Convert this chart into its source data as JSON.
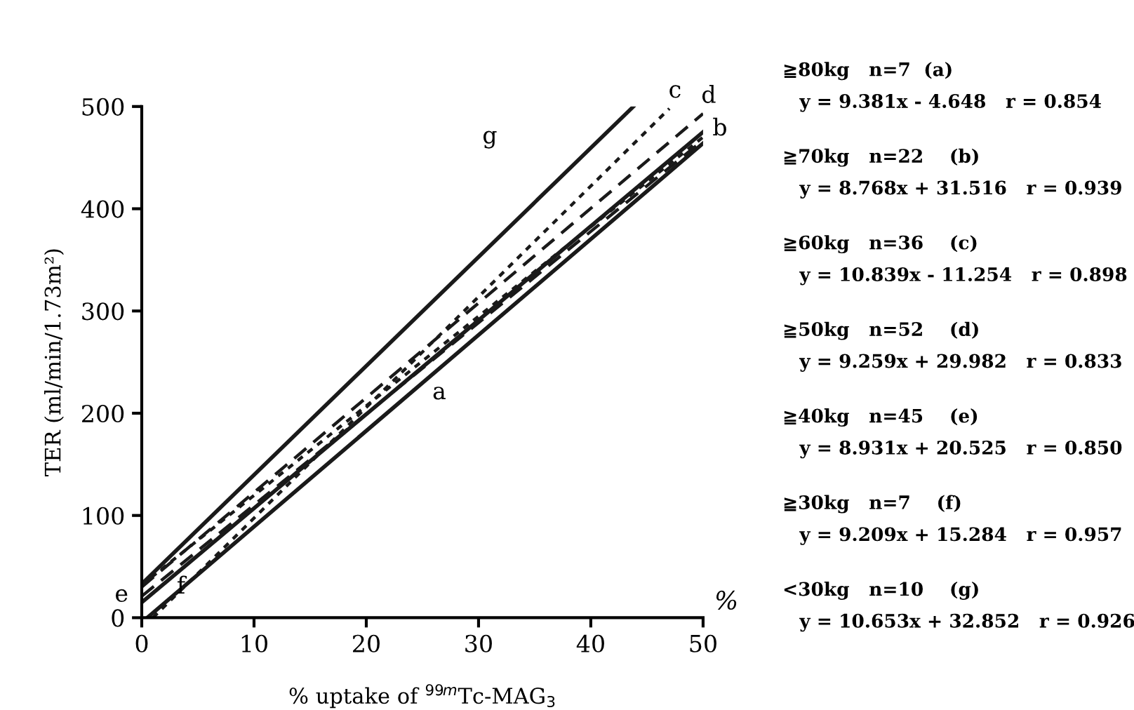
{
  "chart_data": {
    "type": "line",
    "xlabel": "% uptake of $^{99m}$Tc-MAG$_{3}$",
    "ylabel": "TER (ml/min/1.73m²)",
    "xlim": [
      0,
      50
    ],
    "ylim": [
      0,
      500
    ],
    "xticks": [
      0,
      10,
      20,
      30,
      40,
      50
    ],
    "yticks": [
      0,
      100,
      200,
      300,
      400,
      500
    ],
    "grid": false,
    "legend": false,
    "marker": "none",
    "series": [
      {
        "name": "a",
        "color": "#1a1a1a",
        "x": [
          0.5,
          50
        ],
        "values": [
          0,
          464
        ],
        "line_style": "solid"
      },
      {
        "name": "b",
        "color": "#1a1a1a",
        "x": [
          0,
          50
        ],
        "values": [
          32,
          470
        ],
        "line_style": "dotted"
      },
      {
        "name": "c",
        "color": "#1a1a1a",
        "x": [
          1,
          47
        ],
        "values": [
          0,
          498
        ],
        "line_style": "dotted"
      },
      {
        "name": "d",
        "color": "#1a1a1a",
        "x": [
          0,
          50
        ],
        "values": [
          30,
          493
        ],
        "line_style": "dashed"
      },
      {
        "name": "e",
        "color": "#1a1a1a",
        "x": [
          0,
          50
        ],
        "values": [
          21,
          467
        ],
        "line_style": "dashed"
      },
      {
        "name": "f",
        "color": "#1a1a1a",
        "x": [
          0,
          50
        ],
        "values": [
          15,
          475
        ],
        "line_style": "solid"
      },
      {
        "name": "g",
        "color": "#1a1a1a",
        "x": [
          0,
          43.8
        ],
        "values": [
          33,
          500
        ],
        "line_style": "solid"
      }
    ],
    "annotations": [
      "%",
      "≧80kg   n=7  (a)",
      "y = 9.381x - 4.648   r = 0.854",
      "≧70kg   n=22    (b)",
      "y = 8.768x + 31.516   r = 0.939",
      "≧60kg   n=36    (c)",
      "y = 10.839x - 11.254   r = 0.898",
      "≧50kg   n=52    (d)",
      "y = 9.259x + 29.982   r = 0.833",
      "≧40kg   n=45    (e)",
      "y = 8.931x + 20.525   r = 0.850",
      "≧30kg   n=7    (f)",
      "y = 9.209x + 15.284   r = 0.957",
      "<30kg   n=10    (g)",
      "y = 10.653x + 32.852   r = 0.926"
    ]
  }
}
